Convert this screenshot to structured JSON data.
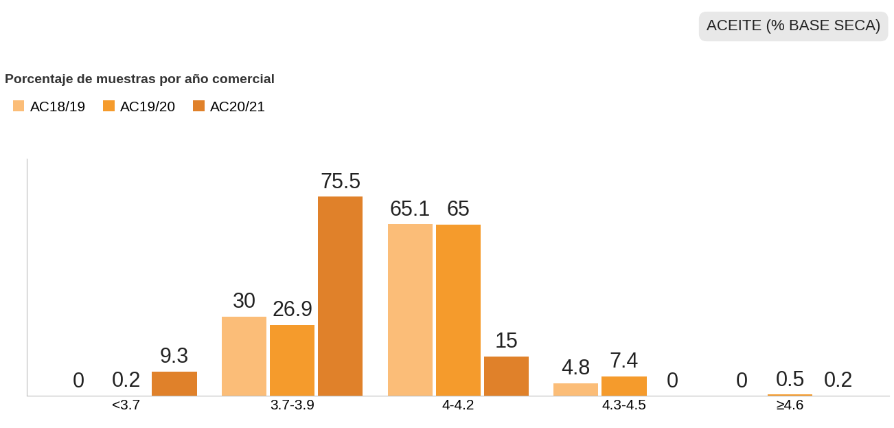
{
  "chart_data": {
    "type": "bar",
    "title": "ACEITE (% BASE SECA)",
    "subtitle": "Porcentaje de muestras por año comercial",
    "categories": [
      "<3.7",
      "3.7-3.9",
      "4-4.2",
      "4.3-4.5",
      "≥4.6"
    ],
    "series": [
      {
        "name": "AC18/19",
        "color": "#fbbd78",
        "values": [
          0,
          30,
          65.1,
          4.8,
          0
        ]
      },
      {
        "name": "AC19/20",
        "color": "#f59b2c",
        "values": [
          0.2,
          26.9,
          65,
          7.4,
          0.5
        ]
      },
      {
        "name": "AC20/21",
        "color": "#e0812a",
        "values": [
          9.3,
          75.5,
          15,
          0,
          0.2
        ]
      }
    ],
    "ylim": [
      0,
      90
    ],
    "yticks": [],
    "grid": false,
    "legend": "upper left",
    "data_labels": true,
    "tick_labels": "x"
  }
}
